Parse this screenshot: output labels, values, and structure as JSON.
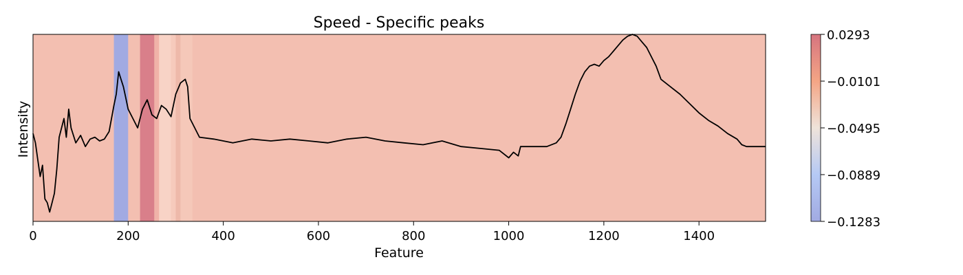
{
  "chart_data": {
    "type": "line",
    "title": "Speed - Specific peaks",
    "xlabel": "Feature",
    "ylabel": "Intensity",
    "xlim": [
      0,
      1540
    ],
    "x_ticks": [
      0,
      200,
      400,
      600,
      800,
      1000,
      1200,
      1400
    ],
    "x_tick_labels": [
      "0",
      "200",
      "400",
      "600",
      "800",
      "1000",
      "1200",
      "1400"
    ],
    "ylim": [
      0,
      1
    ],
    "y_ticks_shown": false,
    "grid": false,
    "line_color": "#000000",
    "background_color": "#f3bfb1",
    "series": [
      {
        "x": [
          0,
          5,
          10,
          15,
          20,
          25,
          30,
          35,
          40,
          45,
          50,
          55,
          60,
          65,
          70,
          75,
          80,
          90,
          100,
          110,
          120,
          130,
          140,
          150,
          160,
          165,
          170,
          175,
          180,
          185,
          190,
          195,
          200,
          210,
          220,
          230,
          240,
          250,
          260,
          270,
          280,
          290,
          300,
          310,
          320,
          325,
          330,
          340,
          350,
          380,
          420,
          460,
          500,
          540,
          580,
          620,
          660,
          700,
          740,
          780,
          820,
          860,
          900,
          940,
          980,
          1000,
          1010,
          1020,
          1025,
          1030,
          1060,
          1080,
          1100,
          1110,
          1120,
          1130,
          1140,
          1150,
          1160,
          1170,
          1180,
          1190,
          1200,
          1210,
          1220,
          1230,
          1240,
          1250,
          1260,
          1270,
          1280,
          1290,
          1300,
          1310,
          1320,
          1340,
          1360,
          1380,
          1400,
          1420,
          1440,
          1460,
          1480,
          1490,
          1500,
          1520,
          1540
        ],
        "y": [
          0.47,
          0.42,
          0.33,
          0.24,
          0.3,
          0.12,
          0.1,
          0.05,
          0.1,
          0.15,
          0.28,
          0.45,
          0.5,
          0.55,
          0.45,
          0.6,
          0.5,
          0.42,
          0.46,
          0.4,
          0.44,
          0.45,
          0.43,
          0.44,
          0.48,
          0.55,
          0.62,
          0.68,
          0.8,
          0.76,
          0.72,
          0.66,
          0.6,
          0.55,
          0.5,
          0.6,
          0.65,
          0.57,
          0.55,
          0.62,
          0.6,
          0.56,
          0.68,
          0.74,
          0.76,
          0.72,
          0.55,
          0.5,
          0.45,
          0.44,
          0.42,
          0.44,
          0.43,
          0.44,
          0.43,
          0.42,
          0.44,
          0.45,
          0.43,
          0.42,
          0.41,
          0.43,
          0.4,
          0.39,
          0.38,
          0.34,
          0.37,
          0.35,
          0.4,
          0.4,
          0.4,
          0.4,
          0.42,
          0.45,
          0.52,
          0.6,
          0.68,
          0.75,
          0.8,
          0.83,
          0.84,
          0.83,
          0.86,
          0.88,
          0.91,
          0.94,
          0.97,
          0.99,
          1.0,
          0.99,
          0.96,
          0.93,
          0.88,
          0.83,
          0.76,
          0.72,
          0.68,
          0.63,
          0.58,
          0.54,
          0.51,
          0.47,
          0.44,
          0.41,
          0.4,
          0.4,
          0.4
        ]
      }
    ],
    "highlight_bands": [
      {
        "x_start": 170,
        "x_end": 200,
        "color": "#a1aae2"
      },
      {
        "x_start": 225,
        "x_end": 255,
        "color": "#d97f8a"
      },
      {
        "x_start": 255,
        "x_end": 265,
        "color": "#f0b2a8"
      },
      {
        "x_start": 265,
        "x_end": 290,
        "color": "#f8d3c6"
      },
      {
        "x_start": 290,
        "x_end": 300,
        "color": "#f6cabc"
      },
      {
        "x_start": 300,
        "x_end": 310,
        "color": "#eeb9aa"
      },
      {
        "x_start": 310,
        "x_end": 335,
        "color": "#f5c8b9"
      }
    ],
    "colorbar": {
      "min": -0.1283,
      "max": 0.0293,
      "ticks": [
        "0.0293",
        "−0.0101",
        "−0.0495",
        "−0.0889",
        "−0.1283"
      ],
      "colors": [
        "#d6747f",
        "#f4a585",
        "#efe3da",
        "#b5c9f4",
        "#a1aae2"
      ]
    }
  }
}
